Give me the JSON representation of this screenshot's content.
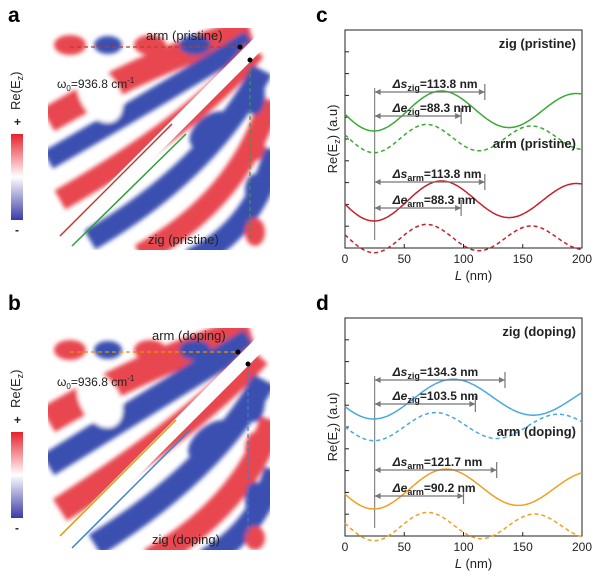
{
  "panels": {
    "a": {
      "letter": "a",
      "cbar_title": "Re(E",
      "cbar_sub": "z",
      "cbar_close": ")",
      "cbar_plus": "+",
      "cbar_minus": "-",
      "omega_text": "ω",
      "omega_sub": "0",
      "omega_value": "=936.8 cm",
      "omega_sup": "-1",
      "top_label": "arm (pristine)",
      "bottom_label": "zig (pristine)",
      "top_color": "#c0392b",
      "bottom_color": "#2e9e3f"
    },
    "b": {
      "letter": "b",
      "cbar_title": "Re(E",
      "cbar_sub": "z",
      "cbar_close": ")",
      "cbar_plus": "+",
      "cbar_minus": "-",
      "omega_text": "ω",
      "omega_sub": "0",
      "omega_value": "=936.8 cm",
      "omega_sup": "-1",
      "top_label": "arm (doping)",
      "bottom_label": "zig (doping)",
      "top_color": "#e59400",
      "bottom_color": "#3a7fd5"
    }
  },
  "chart_data": [
    {
      "panel": "c",
      "type": "line",
      "xlabel": "L (nm)",
      "ylabel": "Re(Ez) (a.u)",
      "xlim": [
        0,
        200
      ],
      "xticks": [
        "0",
        "50",
        "100",
        "150",
        "200"
      ],
      "series": [
        {
          "name": "zig (pristine)",
          "color": "#3aaa35",
          "style": "solid",
          "group": "upper",
          "amp": 1.0,
          "period": 113.8,
          "phase": 25
        },
        {
          "name": "",
          "color": "#3aaa35",
          "style": "dashed",
          "group": "upper",
          "amp": 0.7,
          "period": 88.3,
          "phase": 25
        },
        {
          "name": "arm (pristine)",
          "color": "#c8202a",
          "style": "solid",
          "group": "lower",
          "amp": 1.0,
          "period": 113.8,
          "phase": 25
        },
        {
          "name": "",
          "color": "#c8202a",
          "style": "dashed",
          "group": "lower",
          "amp": 0.7,
          "period": 88.3,
          "phase": 25
        }
      ],
      "annotations": [
        {
          "label_pre": "Δs",
          "label_sub": "zig",
          "label_post": "=113.8 nm",
          "from": 25,
          "to": 118
        },
        {
          "label_pre": "Δe",
          "label_sub": "zig",
          "label_post": "=88.3 nm",
          "from": 25,
          "to": 98
        },
        {
          "label_pre": "Δs",
          "label_sub": "arm",
          "label_post": "=113.8 nm",
          "from": 25,
          "to": 118
        },
        {
          "label_pre": "Δe",
          "label_sub": "arm",
          "label_post": "=88.3 nm",
          "from": 25,
          "to": 98
        }
      ],
      "series_labels": [
        "zig (pristine)",
        "arm (pristine)"
      ]
    },
    {
      "panel": "d",
      "type": "line",
      "xlabel": "L (nm)",
      "ylabel": "Re(Ez) (a.u)",
      "xlim": [
        0,
        200
      ],
      "xticks": [
        "0",
        "50",
        "100",
        "150",
        "200"
      ],
      "series": [
        {
          "name": "zig (doping)",
          "color": "#4aa8e0",
          "style": "solid",
          "group": "upper",
          "amp": 1.0,
          "period": 134.3,
          "phase": 25
        },
        {
          "name": "",
          "color": "#4aa8e0",
          "style": "dashed",
          "group": "upper",
          "amp": 0.7,
          "period": 103.5,
          "phase": 25
        },
        {
          "name": "arm (doping)",
          "color": "#f0a020",
          "style": "solid",
          "group": "lower",
          "amp": 1.0,
          "period": 121.7,
          "phase": 25
        },
        {
          "name": "",
          "color": "#f0a020",
          "style": "dashed",
          "group": "lower",
          "amp": 0.7,
          "period": 90.2,
          "phase": 25
        }
      ],
      "annotations": [
        {
          "label_pre": "Δs",
          "label_sub": "zig",
          "label_post": "=134.3 nm",
          "from": 25,
          "to": 135
        },
        {
          "label_pre": "Δe",
          "label_sub": "zig",
          "label_post": "=103.5 nm",
          "from": 25,
          "to": 110
        },
        {
          "label_pre": "Δs",
          "label_sub": "arm",
          "label_post": "=121.7 nm",
          "from": 25,
          "to": 128
        },
        {
          "label_pre": "Δe",
          "label_sub": "arm",
          "label_post": "=90.2 nm",
          "from": 25,
          "to": 100
        }
      ],
      "series_labels": [
        "zig (doping)",
        "arm (doping)"
      ]
    }
  ]
}
